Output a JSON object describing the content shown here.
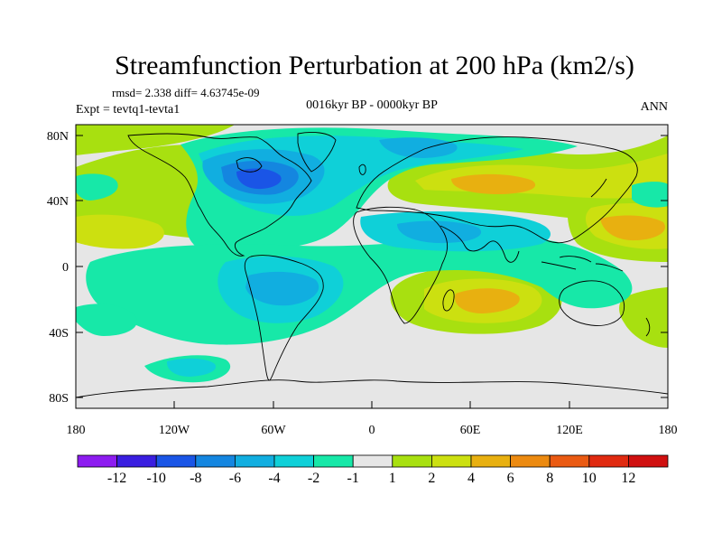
{
  "title": "Streamfunction Perturbation at 200 hPa (km2/s)",
  "stats_line": "rmsd= 2.338 diff= 4.63745e-09",
  "experiment": "Expt = tevtq1-tevta1",
  "period": "0016kyr BP - 0000kyr BP",
  "season": "ANN",
  "map": {
    "lat_ticks": [
      "80N",
      "40N",
      "0",
      "40S",
      "80S"
    ],
    "lat_values": [
      80,
      40,
      0,
      -40,
      -80
    ],
    "lon_ticks": [
      "180",
      "120W",
      "60W",
      "0",
      "60E",
      "120E",
      "180"
    ],
    "lon_values": [
      -180,
      -120,
      -60,
      0,
      60,
      120,
      180
    ]
  },
  "colorbar": {
    "labels": [
      "-12",
      "-10",
      "-8",
      "-6",
      "-4",
      "-2",
      "-1",
      "1",
      "2",
      "4",
      "6",
      "8",
      "10",
      "12"
    ],
    "colors": [
      "#8d1cf0",
      "#3a1ee0",
      "#1a55e6",
      "#1486e0",
      "#11aee0",
      "#0fd0d8",
      "#17e8a8",
      "#e6e6e6",
      "#a8e010",
      "#cce010",
      "#e8b010",
      "#ec8a10",
      "#ea5a12",
      "#e02a10",
      "#d01010"
    ]
  },
  "colors": {
    "ocean_neutral": "#e6e6e6",
    "coast": "#000000"
  }
}
